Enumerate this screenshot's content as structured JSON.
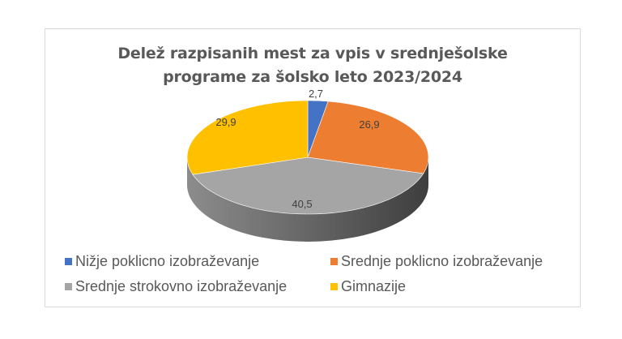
{
  "chart_data": {
    "type": "pie",
    "style": "3d",
    "title": "Delež razpisanih mest za vpis v srednješolske programe za šolsko leto 2023/2024",
    "title_lines": [
      "Delež razpisanih mest za vpis v srednješolske",
      "programe za šolsko leto 2023/2024"
    ],
    "categories": [
      "Nižje poklicno izobraževanje",
      "Srednje poklicno izobraževanje",
      "Srednje strokovno izobraževanje",
      "Gimnazije"
    ],
    "values": [
      2.7,
      26.9,
      40.5,
      29.9
    ],
    "data_labels": [
      "2,7",
      "26,9",
      "40,5",
      "29,9"
    ],
    "colors": [
      "#4472c4",
      "#ed7d31",
      "#a5a5a5",
      "#ffc000"
    ],
    "legend_position": "bottom"
  },
  "legend": {
    "items": [
      {
        "label": "Nižje poklicno izobraževanje",
        "color": "#4472c4"
      },
      {
        "label": "Srednje poklicno izobraževanje",
        "color": "#ed7d31"
      },
      {
        "label": "Srednje strokovno izobraževanje",
        "color": "#a5a5a5"
      },
      {
        "label": "Gimnazije",
        "color": "#ffc000"
      }
    ]
  }
}
